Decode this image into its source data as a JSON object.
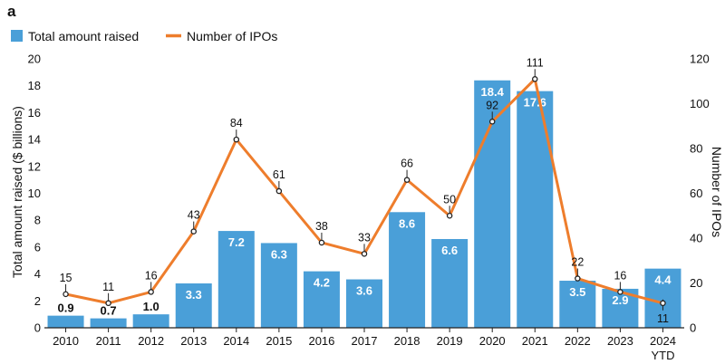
{
  "panel_label": "a",
  "colors": {
    "bar": "#4a9fd8",
    "line": "#ee7d2c",
    "marker_fill": "#ffffff",
    "marker_stroke": "#222222"
  },
  "chart_data": {
    "type": "bar",
    "categories": [
      "2010",
      "2011",
      "2012",
      "2013",
      "2014",
      "2015",
      "2016",
      "2017",
      "2018",
      "2019",
      "2020",
      "2021",
      "2022",
      "2023",
      "2024"
    ],
    "category_sublabels": {
      "2024": "YTD"
    },
    "series": [
      {
        "name": "Total amount raised",
        "type": "bar",
        "axis": "left",
        "values": [
          0.9,
          0.7,
          1.0,
          3.3,
          7.2,
          6.3,
          4.2,
          3.6,
          8.6,
          6.6,
          18.4,
          17.6,
          3.5,
          2.9,
          4.4
        ],
        "value_labels": [
          "0.9",
          "0.7",
          "1.0",
          "3.3",
          "7.2",
          "6.3",
          "4.2",
          "3.6",
          "8.6",
          "6.6",
          "18.4",
          "17.6",
          "3.5",
          "2.9",
          "4.4"
        ]
      },
      {
        "name": "Number of IPOs",
        "type": "line",
        "axis": "right",
        "values": [
          15,
          11,
          16,
          43,
          84,
          61,
          38,
          33,
          66,
          50,
          92,
          111,
          22,
          16,
          11
        ],
        "value_labels": [
          "15",
          "11",
          "16",
          "43",
          "84",
          "61",
          "38",
          "33",
          "66",
          "50",
          "92",
          "111",
          "22",
          "16",
          "11"
        ]
      }
    ],
    "title": "",
    "xlabel": "",
    "ylabel": "Total amount raised ($ billions)",
    "ylabel_right": "Number of IPOs",
    "ylim": [
      0,
      20
    ],
    "yticks": [
      "0",
      "2",
      "4",
      "6",
      "8",
      "10",
      "12",
      "14",
      "16",
      "18",
      "20"
    ],
    "ylim_right": [
      0,
      120
    ],
    "yticks_right": [
      "0",
      "20",
      "40",
      "60",
      "80",
      "100",
      "120"
    ],
    "grid": false,
    "legend_position": "top-left"
  }
}
